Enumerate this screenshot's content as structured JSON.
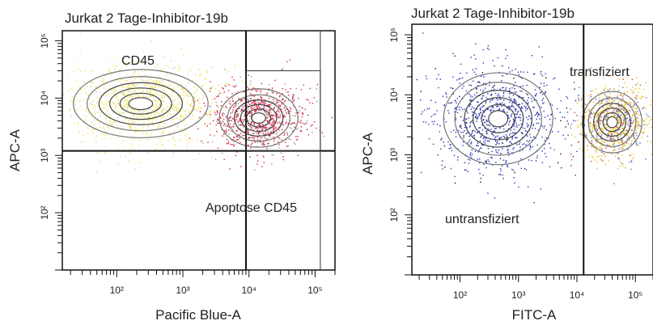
{
  "chart_data": [
    {
      "type": "scatter",
      "subtype": "flow-cytometry-contour-dot-plot",
      "title": "Jurkat 2 Tage-Inhibitor-19b",
      "xlabel": "Pacific Blue-A",
      "ylabel": "APC-A",
      "x_scale": "log",
      "y_scale": "log",
      "xlim": [
        15,
        200000
      ],
      "ylim": [
        10,
        150000
      ],
      "x_ticks": [
        {
          "value": 100,
          "label": "10²"
        },
        {
          "value": 1000,
          "label": "10³"
        },
        {
          "value": 10000,
          "label": "10⁴"
        },
        {
          "value": 100000,
          "label": "10⁵"
        }
      ],
      "y_ticks": [
        {
          "value": 100,
          "label": "10²"
        },
        {
          "value": 1000,
          "label": "10³"
        },
        {
          "value": 10000,
          "label": "10⁴"
        },
        {
          "value": 100000,
          "label": "10⁵"
        }
      ],
      "populations": [
        {
          "label": "CD45",
          "center": [
            230,
            8000
          ],
          "spread": [
            0.6,
            0.35
          ],
          "color": "#f0e040"
        },
        {
          "label": "Apoptose CD45",
          "center": [
            14000,
            4500
          ],
          "spread": [
            0.35,
            0.3
          ],
          "color": "#e0203a"
        }
      ],
      "gates": [
        {
          "label": "CD45",
          "x": [
            15,
            9000
          ],
          "y": [
            1200,
            150000
          ]
        },
        {
          "label": "Apoptose CD45",
          "x": [
            9000,
            120000
          ],
          "y": [
            1200,
            30000
          ]
        }
      ],
      "quadrant_lines": {
        "x": 9000,
        "y": 1200
      }
    },
    {
      "type": "scatter",
      "subtype": "flow-cytometry-contour-dot-plot",
      "title": "Jurkat 2 Tage-Inhibitor-19b",
      "xlabel": "FITC-A",
      "ylabel": "APC-A",
      "x_scale": "log",
      "y_scale": "log",
      "xlim": [
        15,
        200000
      ],
      "ylim": [
        10,
        150000
      ],
      "x_ticks": [
        {
          "value": 100,
          "label": "10²"
        },
        {
          "value": 1000,
          "label": "10³"
        },
        {
          "value": 10000,
          "label": "10⁴"
        },
        {
          "value": 100000,
          "label": "10⁵"
        }
      ],
      "y_ticks": [
        {
          "value": 100,
          "label": "10²"
        },
        {
          "value": 1000,
          "label": "10³"
        },
        {
          "value": 10000,
          "label": "10⁴"
        },
        {
          "value": 100000,
          "label": "10⁵"
        }
      ],
      "populations": [
        {
          "label": "untransfiziert",
          "center": [
            450,
            4000
          ],
          "spread": [
            0.55,
            0.45
          ],
          "color": "#2030c0"
        },
        {
          "label": "transfiziert",
          "center": [
            40000,
            3500
          ],
          "spread": [
            0.3,
            0.3
          ],
          "color": "#e8c020"
        }
      ],
      "gates": [
        {
          "label": "untransfiziert",
          "x": [
            15,
            13000
          ],
          "y": [
            10,
            150000
          ]
        },
        {
          "label": "transfiziert",
          "x": [
            13000,
            200000
          ],
          "y": [
            10,
            150000
          ]
        }
      ],
      "quadrant_lines": {
        "x": 13000
      }
    }
  ]
}
